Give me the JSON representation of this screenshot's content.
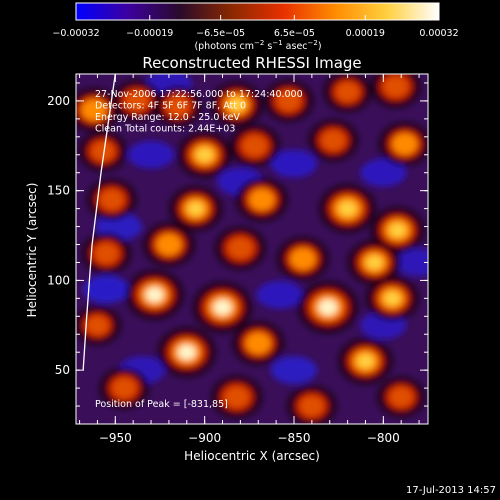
{
  "chart_data": {
    "type": "heatmap",
    "title": "Reconstructed RHESSI Image",
    "xlabel": "Heliocentric X (arcsec)",
    "ylabel": "Heliocentric Y (arcsec)",
    "xlim": [
      -972,
      -775
    ],
    "ylim": [
      20,
      215
    ],
    "x_ticks": [
      -950,
      -900,
      -850,
      -800
    ],
    "x_tick_labels": [
      "−950",
      "−900",
      "−850",
      "−800"
    ],
    "y_ticks": [
      50,
      100,
      150,
      200
    ],
    "y_tick_labels": [
      "50",
      "100",
      "150",
      "200"
    ],
    "colorbar": {
      "vmin": -0.00032,
      "vmax": 0.00032,
      "ticks": [
        -0.00032,
        -0.00019,
        -6.5e-05,
        6.5e-05,
        0.00019,
        0.00032
      ],
      "tick_labels": [
        "−0.00032",
        "−0.00019",
        "−6.5e−05",
        "6.5e−05",
        "0.00019",
        "0.00032"
      ],
      "colors": [
        "#0000ff",
        "#3c00a0",
        "#2a0a2a",
        "#8a2800",
        "#e83000",
        "#ff8c00",
        "#ffd040",
        "#ffffff"
      ]
    },
    "annotations": [
      "27-Nov-2006 17:22:56.000 to 17:24:40.000",
      "Detectors: 4F 5F 6F 7F 8F, Att 0",
      "Energy Range: 12.0 - 25.0 keV",
      "Clean    Total counts: 2.44E+03"
    ],
    "peak_label": "Position of Peak = [-831,85]",
    "peak": [
      -831,
      85
    ],
    "limb_arc": [
      [
        -950,
        215
      ],
      [
        -958,
        160
      ],
      [
        -963,
        120
      ],
      [
        -966,
        80
      ],
      [
        -968,
        50
      ]
    ],
    "hotspots": [
      {
        "x": -962,
        "y": 195,
        "level": 0.65
      },
      {
        "x": -938,
        "y": 200,
        "level": 0.55
      },
      {
        "x": -915,
        "y": 197,
        "level": 0.5
      },
      {
        "x": -882,
        "y": 198,
        "level": 0.7
      },
      {
        "x": -853,
        "y": 200,
        "level": 0.55
      },
      {
        "x": -820,
        "y": 205,
        "level": 0.5
      },
      {
        "x": -793,
        "y": 208,
        "level": 0.6
      },
      {
        "x": -957,
        "y": 172,
        "level": 0.5
      },
      {
        "x": -900,
        "y": 170,
        "level": 0.75
      },
      {
        "x": -872,
        "y": 175,
        "level": 0.6
      },
      {
        "x": -828,
        "y": 178,
        "level": 0.55
      },
      {
        "x": -788,
        "y": 176,
        "level": 0.65
      },
      {
        "x": -952,
        "y": 145,
        "level": 0.55
      },
      {
        "x": -905,
        "y": 140,
        "level": 0.7
      },
      {
        "x": -868,
        "y": 145,
        "level": 0.65
      },
      {
        "x": -820,
        "y": 140,
        "level": 0.85
      },
      {
        "x": -792,
        "y": 128,
        "level": 0.75
      },
      {
        "x": -955,
        "y": 115,
        "level": 0.55
      },
      {
        "x": -920,
        "y": 120,
        "level": 0.65
      },
      {
        "x": -880,
        "y": 118,
        "level": 0.6
      },
      {
        "x": -845,
        "y": 112,
        "level": 0.65
      },
      {
        "x": -805,
        "y": 110,
        "level": 0.7
      },
      {
        "x": -928,
        "y": 92,
        "level": 0.9
      },
      {
        "x": -890,
        "y": 85,
        "level": 0.95
      },
      {
        "x": -831,
        "y": 85,
        "level": 1.0
      },
      {
        "x": -795,
        "y": 90,
        "level": 0.7
      },
      {
        "x": -960,
        "y": 75,
        "level": 0.45
      },
      {
        "x": -910,
        "y": 60,
        "level": 0.9
      },
      {
        "x": -870,
        "y": 65,
        "level": 0.65
      },
      {
        "x": -810,
        "y": 55,
        "level": 0.75
      },
      {
        "x": -945,
        "y": 40,
        "level": 0.55
      },
      {
        "x": -882,
        "y": 35,
        "level": 0.6
      },
      {
        "x": -840,
        "y": 30,
        "level": 0.55
      },
      {
        "x": -790,
        "y": 35,
        "level": 0.5
      }
    ],
    "coldspots": [
      {
        "x": -948,
        "y": 130,
        "level": 0.8
      },
      {
        "x": -955,
        "y": 95,
        "level": 0.95
      },
      {
        "x": -930,
        "y": 170,
        "level": 0.7
      },
      {
        "x": -880,
        "y": 155,
        "level": 0.7
      },
      {
        "x": -850,
        "y": 165,
        "level": 0.75
      },
      {
        "x": -800,
        "y": 160,
        "level": 0.7
      },
      {
        "x": -858,
        "y": 92,
        "level": 0.7
      },
      {
        "x": -800,
        "y": 75,
        "level": 0.6
      },
      {
        "x": -935,
        "y": 50,
        "level": 0.6
      },
      {
        "x": -850,
        "y": 50,
        "level": 0.8
      },
      {
        "x": -780,
        "y": 110,
        "level": 0.6
      },
      {
        "x": -920,
        "y": 210,
        "level": 0.6
      }
    ]
  },
  "footer": {
    "date_text": "17-Jul-2013 14:57"
  }
}
